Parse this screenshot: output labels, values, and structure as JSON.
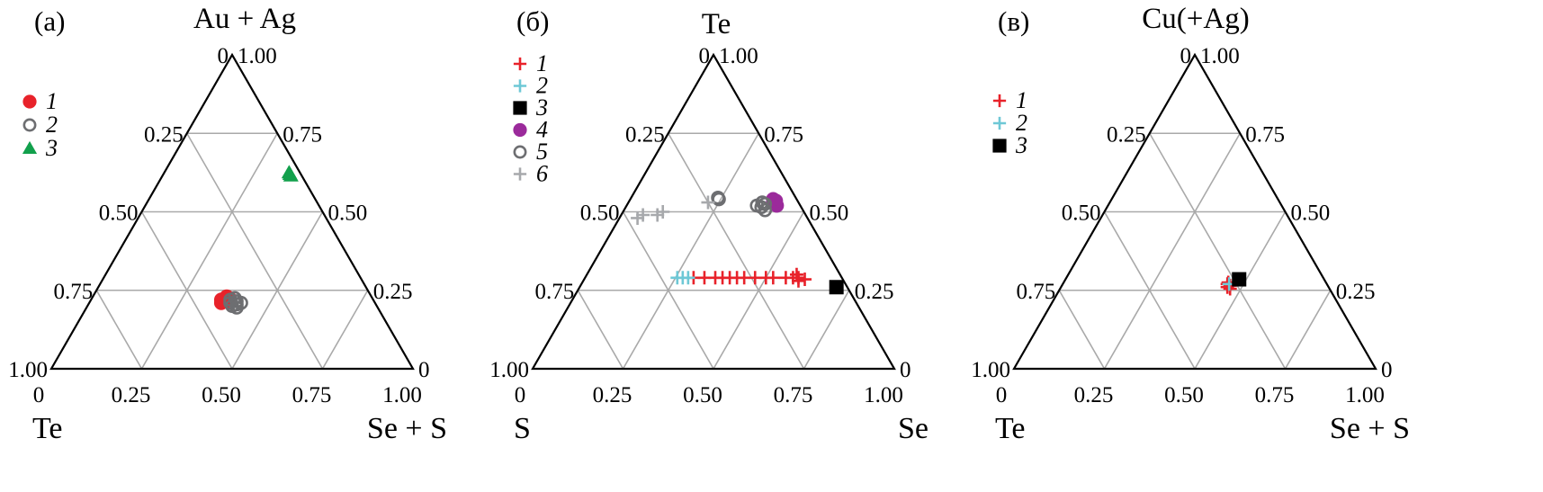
{
  "chart_data": [
    {
      "type": "ternary-scatter",
      "panel_label": "(а)",
      "title": "Au + Ag",
      "corner_left": "Te",
      "corner_right": "Se + S",
      "tick_labels": [
        "0",
        "0.25",
        "0.50",
        "0.75",
        "1.00"
      ],
      "grid": true,
      "legend": [
        {
          "label": "1",
          "marker": "filled-circle",
          "color": "#e8222a"
        },
        {
          "label": "2",
          "marker": "open-circle",
          "color": "#6d6e71"
        },
        {
          "label": "3",
          "marker": "filled-triangle",
          "color": "#12a04c"
        }
      ],
      "points": [
        {
          "series": "1",
          "top": 0.22,
          "right": 0.36
        },
        {
          "series": "1",
          "top": 0.21,
          "right": 0.365
        },
        {
          "series": "1",
          "top": 0.23,
          "right": 0.37
        },
        {
          "series": "1",
          "top": 0.215,
          "right": 0.375
        },
        {
          "series": "1",
          "top": 0.225,
          "right": 0.38
        },
        {
          "series": "2",
          "top": 0.21,
          "right": 0.39
        },
        {
          "series": "2",
          "top": 0.22,
          "right": 0.385
        },
        {
          "series": "2",
          "top": 0.2,
          "right": 0.4
        },
        {
          "series": "2",
          "top": 0.215,
          "right": 0.405
        },
        {
          "series": "2",
          "top": 0.205,
          "right": 0.41
        },
        {
          "series": "2",
          "top": 0.225,
          "right": 0.395
        },
        {
          "series": "2",
          "top": 0.195,
          "right": 0.415
        },
        {
          "series": "2",
          "top": 0.21,
          "right": 0.42
        },
        {
          "series": "3",
          "top": 0.62,
          "right": 0.35
        },
        {
          "series": "3",
          "top": 0.615,
          "right": 0.355
        },
        {
          "series": "3",
          "top": 0.625,
          "right": 0.345
        }
      ]
    },
    {
      "type": "ternary-scatter",
      "panel_label": "(б)",
      "title": "Te",
      "corner_left": "S",
      "corner_right": "Se",
      "tick_labels": [
        "0",
        "0.25",
        "0.50",
        "0.75",
        "1.00"
      ],
      "grid": true,
      "legend": [
        {
          "label": "1",
          "marker": "plus",
          "color": "#e8222a"
        },
        {
          "label": "2",
          "marker": "plus",
          "color": "#6ec8d6"
        },
        {
          "label": "3",
          "marker": "filled-square",
          "color": "#000000"
        },
        {
          "label": "4",
          "marker": "filled-circle",
          "color": "#9b2a9b"
        },
        {
          "label": "5",
          "marker": "open-circle",
          "color": "#6d6e71"
        },
        {
          "label": "6",
          "marker": "plus",
          "color": "#a7a9ac"
        }
      ],
      "points": [
        {
          "series": "1",
          "top": 0.29,
          "right": 0.3
        },
        {
          "series": "1",
          "top": 0.29,
          "right": 0.33
        },
        {
          "series": "1",
          "top": 0.29,
          "right": 0.36
        },
        {
          "series": "1",
          "top": 0.29,
          "right": 0.38
        },
        {
          "series": "1",
          "top": 0.29,
          "right": 0.4
        },
        {
          "series": "1",
          "top": 0.29,
          "right": 0.42
        },
        {
          "series": "1",
          "top": 0.29,
          "right": 0.44
        },
        {
          "series": "1",
          "top": 0.29,
          "right": 0.47
        },
        {
          "series": "1",
          "top": 0.29,
          "right": 0.5
        },
        {
          "series": "1",
          "top": 0.29,
          "right": 0.52
        },
        {
          "series": "1",
          "top": 0.29,
          "right": 0.555
        },
        {
          "series": "1",
          "top": 0.29,
          "right": 0.575
        },
        {
          "series": "1",
          "top": 0.29,
          "right": 0.59
        },
        {
          "series": "1",
          "top": 0.28,
          "right": 0.595
        },
        {
          "series": "1",
          "top": 0.3,
          "right": 0.58
        },
        {
          "series": "1",
          "top": 0.285,
          "right": 0.61
        },
        {
          "series": "2",
          "top": 0.29,
          "right": 0.255
        },
        {
          "series": "2",
          "top": 0.29,
          "right": 0.27
        },
        {
          "series": "2",
          "top": 0.29,
          "right": 0.285
        },
        {
          "series": "3",
          "top": 0.26,
          "right": 0.71
        },
        {
          "series": "4",
          "top": 0.53,
          "right": 0.4
        },
        {
          "series": "4",
          "top": 0.525,
          "right": 0.41
        },
        {
          "series": "4",
          "top": 0.52,
          "right": 0.415
        },
        {
          "series": "4",
          "top": 0.535,
          "right": 0.405
        },
        {
          "series": "4",
          "top": 0.54,
          "right": 0.395
        },
        {
          "series": "5",
          "top": 0.52,
          "right": 0.36
        },
        {
          "series": "5",
          "top": 0.53,
          "right": 0.37
        },
        {
          "series": "5",
          "top": 0.525,
          "right": 0.38
        },
        {
          "series": "5",
          "top": 0.515,
          "right": 0.375
        },
        {
          "series": "5",
          "top": 0.545,
          "right": 0.24
        },
        {
          "series": "5",
          "top": 0.54,
          "right": 0.245
        },
        {
          "series": "5",
          "top": 0.505,
          "right": 0.39
        },
        {
          "series": "6",
          "top": 0.48,
          "right": 0.05
        },
        {
          "series": "6",
          "top": 0.49,
          "right": 0.06
        },
        {
          "series": "6",
          "top": 0.49,
          "right": 0.1
        },
        {
          "series": "6",
          "top": 0.5,
          "right": 0.11
        },
        {
          "series": "6",
          "top": 0.53,
          "right": 0.22
        }
      ]
    },
    {
      "type": "ternary-scatter",
      "panel_label": "(в)",
      "title": "Cu(+Ag)",
      "corner_left": "Te",
      "corner_right": "Se + S",
      "tick_labels": [
        "0",
        "0.25",
        "0.50",
        "0.75",
        "1.00"
      ],
      "grid": true,
      "legend": [
        {
          "label": "1",
          "marker": "plus",
          "color": "#e8222a"
        },
        {
          "label": "2",
          "marker": "plus",
          "color": "#6ec8d6"
        },
        {
          "label": "3",
          "marker": "filled-square",
          "color": "#000000"
        }
      ],
      "points": [
        {
          "series": "1",
          "top": 0.27,
          "right": 0.455
        },
        {
          "series": "1",
          "top": 0.26,
          "right": 0.46
        },
        {
          "series": "1",
          "top": 0.265,
          "right": 0.465
        },
        {
          "series": "1",
          "top": 0.255,
          "right": 0.47
        },
        {
          "series": "1",
          "top": 0.275,
          "right": 0.455
        },
        {
          "series": "2",
          "top": 0.27,
          "right": 0.46
        },
        {
          "series": "3",
          "top": 0.285,
          "right": 0.48
        }
      ]
    }
  ]
}
